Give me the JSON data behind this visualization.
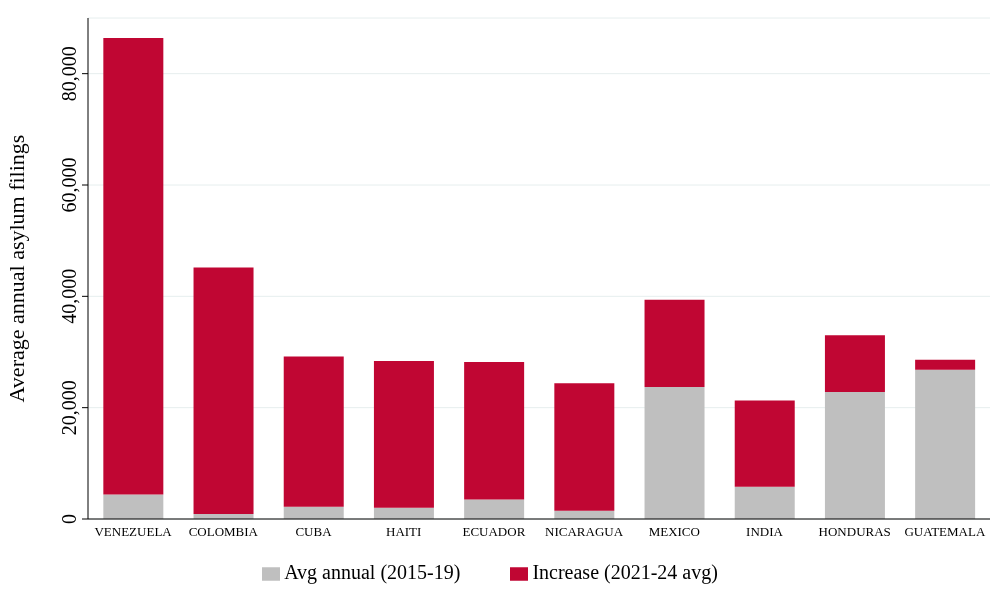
{
  "chart_data": {
    "type": "bar",
    "stacked": true,
    "ylabel": "Average annual asylum filings",
    "categories": [
      "VENEZUELA",
      "COLOMBIA",
      "CUBA",
      "HAITI",
      "ECUADOR",
      "NICARAGUA",
      "MEXICO",
      "INDIA",
      "HONDURAS",
      "GUATEMALA"
    ],
    "series": [
      {
        "name": "Avg annual (2015-19)",
        "color": "#bfbfbf",
        "values": [
          4400,
          900,
          2200,
          2000,
          3500,
          1500,
          23700,
          5800,
          22800,
          26800
        ]
      },
      {
        "name": "Increase (2021-24 avg)",
        "color": "#c00633",
        "values": [
          82000,
          44300,
          27000,
          26400,
          24700,
          22900,
          15700,
          15500,
          10200,
          1800
        ]
      }
    ],
    "ylim": [
      0,
      90000
    ],
    "yticks": [
      0,
      {
        "value": 20000,
        "label": "20,000"
      },
      {
        "value": 40000,
        "label": "40,000"
      },
      {
        "value": 60000,
        "label": "60,000"
      },
      {
        "value": 80000,
        "label": "80,000"
      }
    ],
    "grid": "y",
    "legend": "bottom"
  }
}
